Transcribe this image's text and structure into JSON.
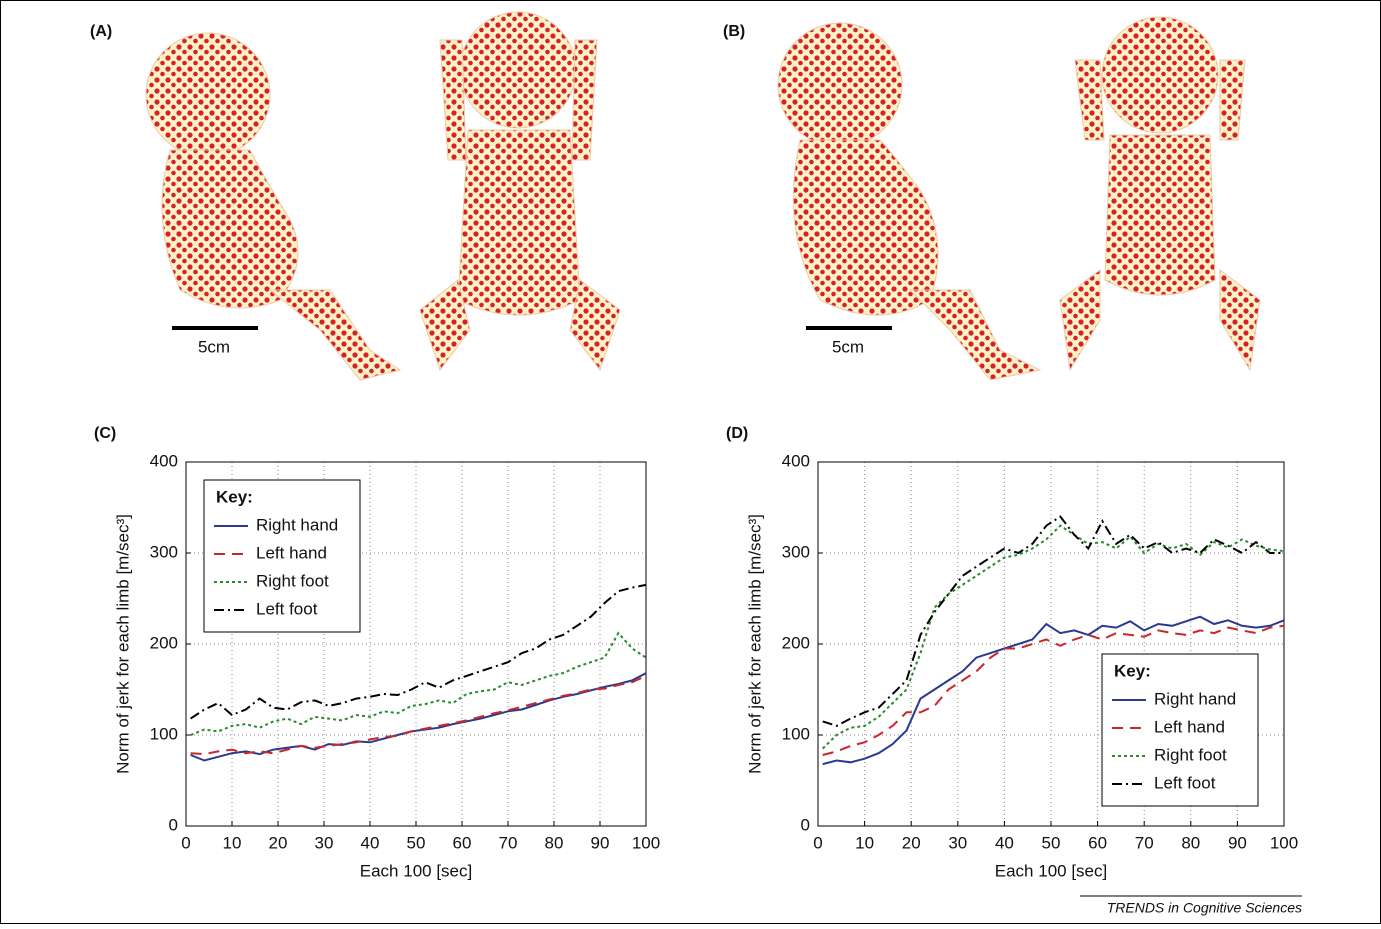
{
  "panels": [
    {
      "label": "(A)",
      "scale_bar": "5cm"
    },
    {
      "label": "(B)",
      "scale_bar": "5cm"
    }
  ],
  "chart_data": [
    {
      "type": "line",
      "title": "(C)",
      "x_label": "Each 100 [sec]",
      "y_label": "Norm of jerk for each limb [m/sec³]",
      "x": [
        1,
        4,
        7,
        10,
        13,
        16,
        19,
        22,
        25,
        28,
        31,
        34,
        37,
        40,
        43,
        46,
        49,
        52,
        55,
        58,
        61,
        64,
        67,
        70,
        73,
        76,
        79,
        82,
        85,
        88,
        91,
        94,
        97,
        100
      ],
      "xlim": [
        0,
        100
      ],
      "xticks": [
        0,
        10,
        20,
        30,
        40,
        50,
        60,
        70,
        80,
        90,
        100
      ],
      "ylim": [
        0,
        400
      ],
      "yticks": [
        0,
        100,
        200,
        300,
        400
      ],
      "grid": true,
      "legend": "upper left",
      "legend_title": "Key:",
      "series": [
        {
          "name": "Right hand",
          "color": "#2b3a8f",
          "dash": "solid",
          "values": [
            78,
            72,
            76,
            80,
            82,
            79,
            84,
            86,
            88,
            84,
            90,
            89,
            93,
            92,
            96,
            100,
            104,
            106,
            108,
            112,
            115,
            118,
            122,
            126,
            128,
            133,
            138,
            142,
            145,
            149,
            153,
            156,
            160,
            168
          ]
        },
        {
          "name": "Left hand",
          "color": "#c8282d",
          "dash": "dashed",
          "values": [
            80,
            79,
            82,
            84,
            80,
            82,
            80,
            84,
            88,
            86,
            88,
            90,
            92,
            95,
            98,
            99,
            104,
            107,
            110,
            113,
            116,
            120,
            124,
            127,
            131,
            135,
            139,
            143,
            146,
            150,
            151,
            155,
            158,
            165
          ]
        },
        {
          "name": "Right foot",
          "color": "#2a8a2a",
          "dash": "dotted",
          "values": [
            100,
            106,
            104,
            110,
            112,
            108,
            115,
            118,
            112,
            120,
            118,
            116,
            122,
            120,
            126,
            124,
            132,
            134,
            138,
            135,
            145,
            148,
            150,
            158,
            155,
            160,
            165,
            168,
            175,
            180,
            185,
            212,
            195,
            185
          ]
        },
        {
          "name": "Left foot",
          "color": "#000000",
          "dash": "dashdot",
          "values": [
            118,
            128,
            135,
            122,
            128,
            140,
            130,
            128,
            136,
            138,
            132,
            135,
            140,
            142,
            145,
            144,
            150,
            158,
            152,
            160,
            165,
            170,
            175,
            180,
            190,
            195,
            205,
            210,
            220,
            230,
            245,
            258,
            262,
            265
          ]
        }
      ]
    },
    {
      "type": "line",
      "title": "(D)",
      "x_label": "Each 100 [sec]",
      "y_label": "Norm of jerk for each limb [m/sec³]",
      "x": [
        1,
        4,
        7,
        10,
        13,
        16,
        19,
        22,
        25,
        28,
        31,
        34,
        37,
        40,
        43,
        46,
        49,
        52,
        55,
        58,
        61,
        64,
        67,
        70,
        73,
        76,
        79,
        82,
        85,
        88,
        91,
        94,
        97,
        100
      ],
      "xlim": [
        0,
        100
      ],
      "xticks": [
        0,
        10,
        20,
        30,
        40,
        50,
        60,
        70,
        80,
        90,
        100
      ],
      "ylim": [
        0,
        400
      ],
      "yticks": [
        0,
        100,
        200,
        300,
        400
      ],
      "grid": true,
      "legend": "lower right",
      "legend_title": "Key:",
      "series": [
        {
          "name": "Right hand",
          "color": "#2b3a8f",
          "dash": "solid",
          "values": [
            68,
            72,
            70,
            74,
            80,
            90,
            105,
            140,
            150,
            160,
            170,
            185,
            190,
            195,
            200,
            205,
            222,
            212,
            215,
            210,
            220,
            218,
            225,
            215,
            222,
            220,
            225,
            230,
            222,
            226,
            220,
            218,
            220,
            226
          ]
        },
        {
          "name": "Left hand",
          "color": "#c8282d",
          "dash": "dashed",
          "values": [
            78,
            82,
            88,
            92,
            100,
            110,
            125,
            125,
            132,
            150,
            160,
            170,
            185,
            195,
            195,
            200,
            205,
            198,
            205,
            210,
            205,
            212,
            210,
            208,
            215,
            212,
            210,
            215,
            212,
            218,
            215,
            212,
            218,
            220
          ]
        },
        {
          "name": "Right foot",
          "color": "#2a8a2a",
          "dash": "dotted",
          "values": [
            85,
            100,
            108,
            110,
            120,
            135,
            150,
            190,
            240,
            255,
            265,
            275,
            285,
            295,
            298,
            305,
            315,
            330,
            320,
            310,
            312,
            305,
            318,
            300,
            310,
            305,
            310,
            298,
            312,
            306,
            315,
            308,
            304,
            302
          ]
        },
        {
          "name": "Left foot",
          "color": "#000000",
          "dash": "dashdot",
          "values": [
            115,
            110,
            118,
            125,
            130,
            145,
            160,
            210,
            235,
            255,
            275,
            285,
            295,
            305,
            300,
            310,
            330,
            340,
            320,
            305,
            335,
            310,
            320,
            305,
            312,
            300,
            305,
            300,
            315,
            308,
            300,
            312,
            300,
            300
          ]
        }
      ]
    }
  ],
  "footer": "TRENDS in Cognitive Sciences"
}
